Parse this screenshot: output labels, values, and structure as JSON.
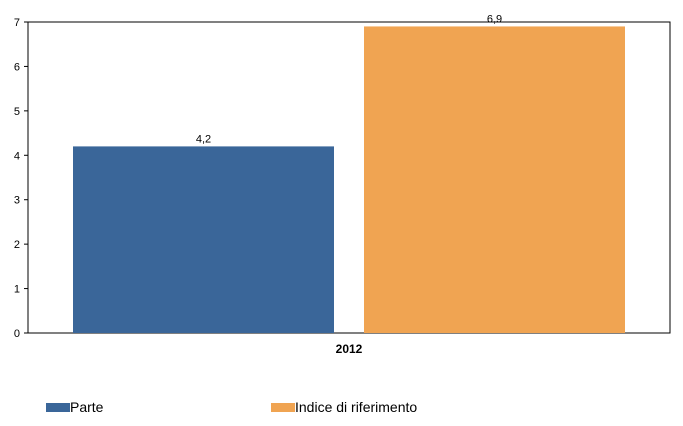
{
  "chart_data": {
    "type": "bar",
    "categories": [
      "2012"
    ],
    "series": [
      {
        "name": "Parte",
        "values": [
          4.2
        ],
        "value_labels": [
          "4,2"
        ],
        "color": "#3a6699"
      },
      {
        "name": "Indice di riferimento",
        "values": [
          6.9
        ],
        "value_labels": [
          "6,9"
        ],
        "color": "#f0a452"
      }
    ],
    "ylim": [
      0,
      7
    ],
    "yticks": [
      "0",
      "1",
      "2",
      "3",
      "4",
      "5",
      "6",
      "7"
    ],
    "title": "",
    "xlabel": "",
    "ylabel": "",
    "grid": false,
    "legend_position": "bottom"
  }
}
